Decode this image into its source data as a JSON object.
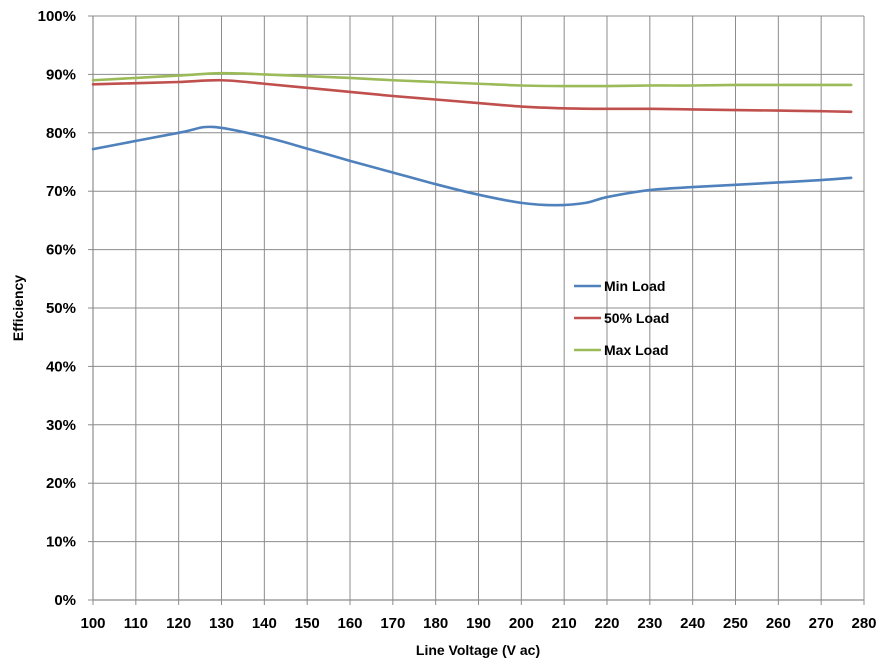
{
  "chart_data": {
    "type": "line",
    "title": "",
    "xlabel": "Line Voltage (V ac)",
    "ylabel": "Efficiency",
    "xlim": [
      100,
      280
    ],
    "ylim": [
      0,
      100
    ],
    "x_ticks": [
      "100",
      "110",
      "120",
      "130",
      "140",
      "150",
      "160",
      "170",
      "180",
      "190",
      "200",
      "210",
      "220",
      "230",
      "240",
      "250",
      "260",
      "270",
      "280"
    ],
    "y_ticks": [
      "0%",
      "10%",
      "20%",
      "30%",
      "40%",
      "50%",
      "60%",
      "70%",
      "80%",
      "90%",
      "100%"
    ],
    "grid": true,
    "legend_position": "center-right",
    "series": [
      {
        "name": "Min Load",
        "color": "#4F81BD",
        "x": [
          100,
          120,
          128,
          140,
          150,
          160,
          170,
          180,
          190,
          200,
          208,
          215,
          220,
          230,
          240,
          250,
          260,
          270,
          277
        ],
        "y": [
          77.2,
          80.0,
          81.0,
          79.3,
          77.3,
          75.2,
          73.2,
          71.2,
          69.4,
          68.0,
          67.6,
          68.0,
          69.0,
          70.2,
          70.7,
          71.1,
          71.5,
          71.9,
          72.3
        ]
      },
      {
        "name": "50% Load",
        "color": "#C0504D",
        "x": [
          100,
          110,
          120,
          130,
          140,
          150,
          160,
          170,
          180,
          190,
          200,
          210,
          220,
          230,
          240,
          250,
          260,
          270,
          277
        ],
        "y": [
          88.3,
          88.5,
          88.7,
          89.0,
          88.4,
          87.7,
          87.0,
          86.3,
          85.7,
          85.1,
          84.5,
          84.2,
          84.1,
          84.1,
          84.0,
          83.9,
          83.8,
          83.7,
          83.6
        ]
      },
      {
        "name": "Max Load",
        "color": "#9BBB59",
        "x": [
          100,
          110,
          120,
          130,
          140,
          150,
          160,
          170,
          180,
          190,
          200,
          210,
          220,
          230,
          240,
          250,
          260,
          270,
          277
        ],
        "y": [
          89.0,
          89.4,
          89.8,
          90.2,
          90.0,
          89.7,
          89.4,
          89.0,
          88.7,
          88.4,
          88.1,
          88.0,
          88.0,
          88.1,
          88.1,
          88.2,
          88.2,
          88.2,
          88.2
        ]
      }
    ]
  }
}
